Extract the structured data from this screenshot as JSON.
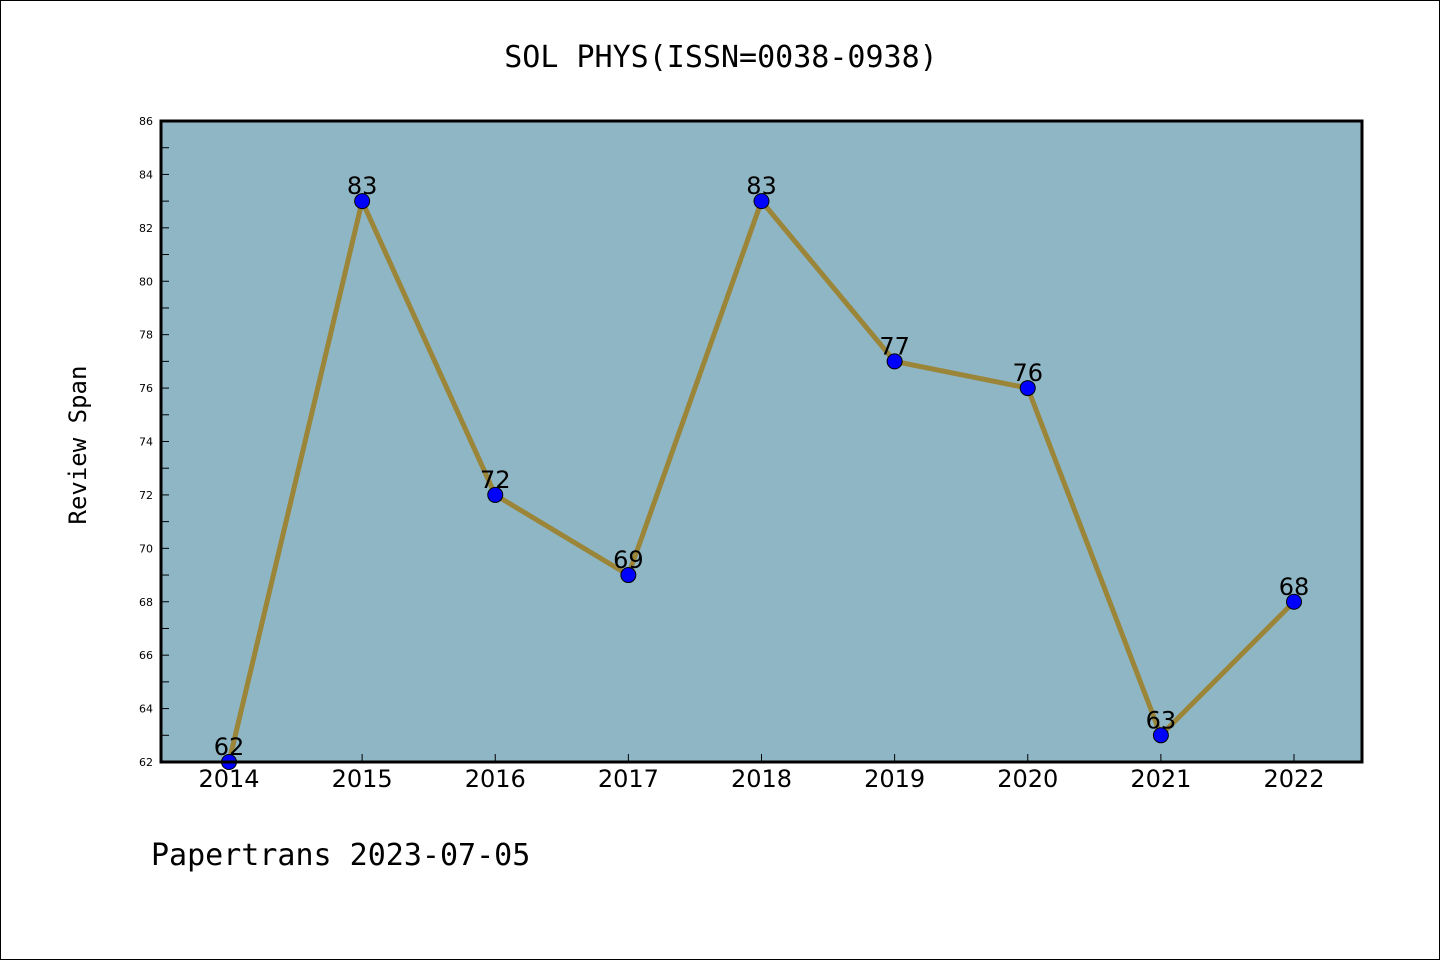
{
  "chart_data": {
    "type": "line",
    "title": "SOL PHYS(ISSN=0038-0938)",
    "xlabel": "",
    "ylabel": "Review Span",
    "categories": [
      "2014",
      "2015",
      "2016",
      "2017",
      "2018",
      "2019",
      "2020",
      "2021",
      "2022"
    ],
    "values": [
      62,
      83,
      72,
      69,
      83,
      77,
      76,
      63,
      68
    ],
    "ylim": [
      62,
      86
    ],
    "yticks": [
      "62",
      "64",
      "66",
      "68",
      "70",
      "72",
      "74",
      "76",
      "78",
      "80",
      "82",
      "84",
      "86"
    ],
    "grid": false,
    "colors": {
      "plot_background": "#8fb6c5",
      "line": "#9a8538",
      "marker": "#0000ff"
    }
  },
  "footer": "Papertrans 2023-07-05"
}
